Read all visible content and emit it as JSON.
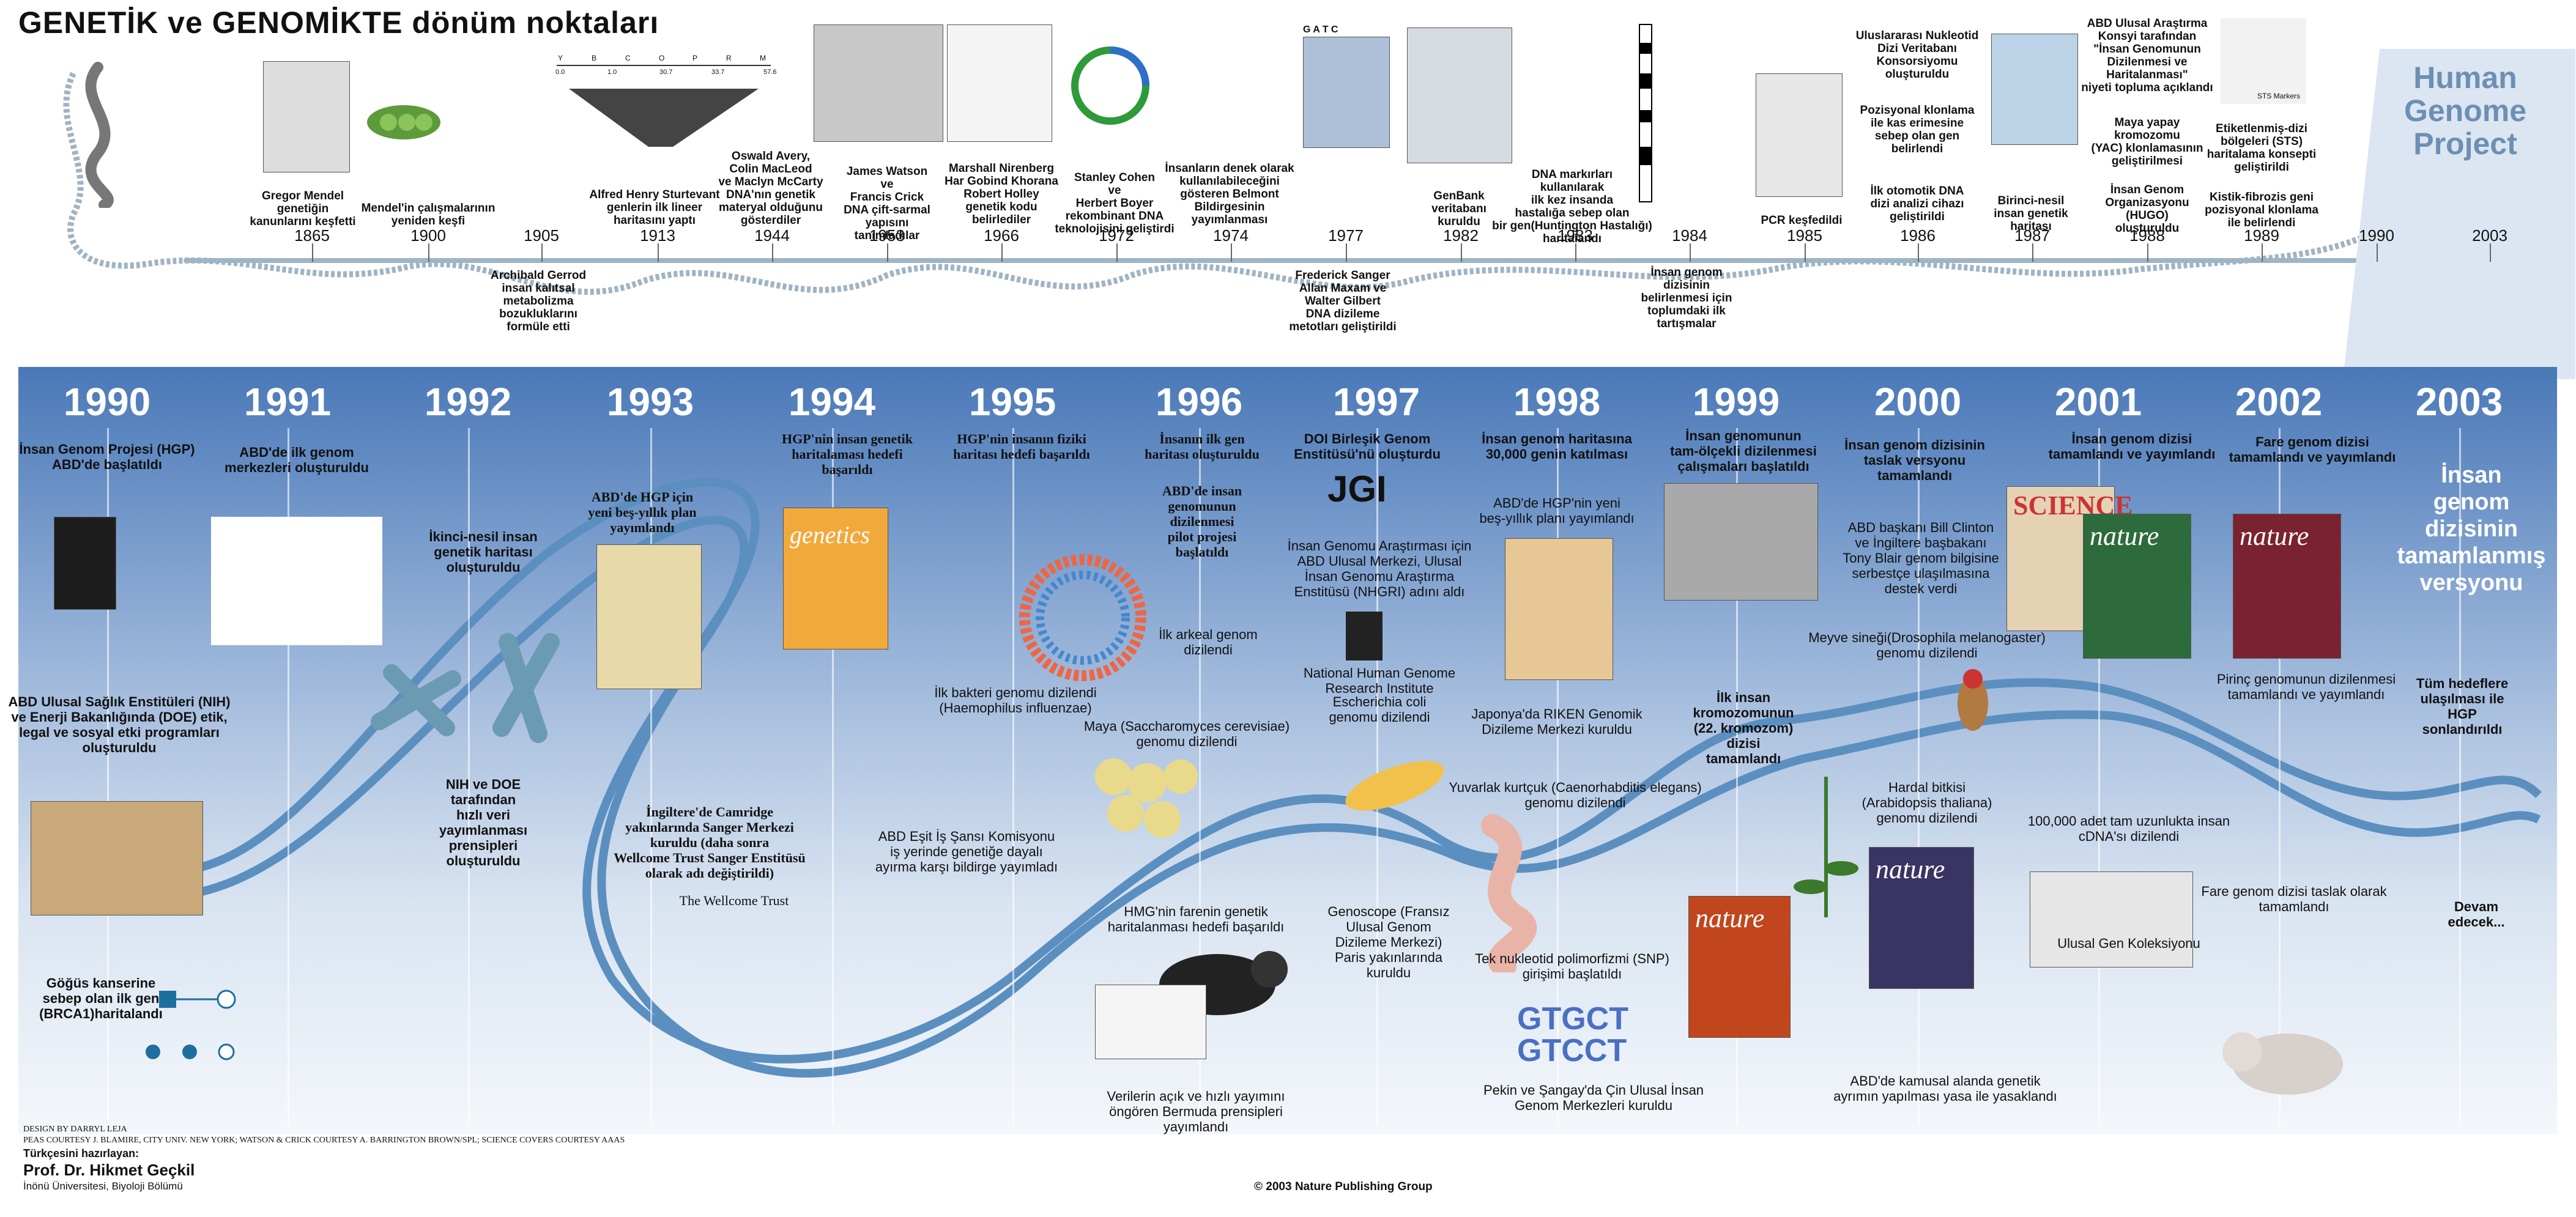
{
  "title": "GENETİK ve GENOMİKTE dönüm noktaları",
  "hgp_label": "Human\nGenome\nProject",
  "top_timeline": {
    "years": [
      "1865",
      "1900",
      "1905",
      "1913",
      "1944",
      "1953",
      "1966",
      "1972",
      "1974",
      "1977",
      "1982",
      "1983",
      "1984",
      "1985",
      "1986",
      "1987",
      "1988",
      "1989",
      "1990",
      "2003"
    ],
    "captions": {
      "c1865": "Gregor Mendel\ngenetiğin\nkanunlarını keşfetti",
      "c1900": "Mendel'in çalışmalarının\nyeniden keşfi",
      "c1905": "Archibald Gerrod\ninsan kalıtsal\nmetabolizma\nbozukluklarını\nformüle etti",
      "c1913": "Alfred Henry Sturtevant\ngenlerin ilk lineer\nharitasını yaptı",
      "c1944": "Oswald Avery,\nColin MacLeod\nve Maclyn McCarty\nDNA'nın genetik\nmateryal olduğunu\ngösterdiler",
      "c1953": "James Watson\nve\nFrancis Crick\nDNA çift-sarmal\nyapısını\ntanımladılar",
      "c1966": "Marshall Nirenberg\nHar Gobind Khorana\nRobert Holley\ngenetik kodu\nbelirlediler",
      "c1972": "Stanley Cohen\nve\nHerbert Boyer\nrekombinant DNA\nteknolojisini geliştirdi",
      "c1974": "İnsanların denek olarak\nkullanılabileceğini\ngösteren Belmont\nBildirgesinin\nyayımlanması",
      "c1977": "Frederick Sanger\nAllan Maxam ve\nWalter Gilbert\nDNA dizileme\nmetotları geliştirildi",
      "c1982": "GenBank\nveritabanı\nkuruldu",
      "c1983": "DNA markırları\nkullanılarak\nilk kez insanda\nhastalığa sebep olan\nbir gen(Huntington Hastalığı)\nharitalandı",
      "c1984": "İnsan genom\ndizisinin\nbelirlenmesi için\ntoplumdaki ilk\ntartışmalar",
      "c1985": "PCR keşfedildi",
      "c1986a": "Uluslararası Nukleotid\nDizi Veritabanı\nKonsorsiyomu\noluşturuldu",
      "c1986b": "Pozisyonal klonlama\nile kas erimesine\nsebep olan gen\nbelirlendi",
      "c1986c": "İlk otomotik DNA\ndizi analizi cihazı\ngeliştirildi",
      "c1987": "Birinci-nesil\ninsan genetik\nharitası",
      "c1988a": "ABD Ulusal Araştırma\nKonsyi tarafından\n\"İnsan Genomunun\nDizilenmesi ve\nHaritalanması\"\nniyeti topluma açıklandı",
      "c1988b": "Maya yapay\nkromozomu\n(YAC) klonlamasının\ngeliştirilmesi",
      "c1988c": "İnsan Genom\nOrganizasyonu\n(HUGO)\noluşturuldu",
      "c1989a": "Etiketlenmiş-dizi\nbölgeleri (STS)\nharitalama konsepti\ngeliştirildi",
      "c1989b": "Kistik-fibrozis geni\npozisyonal klonlama\nile belirlendi"
    },
    "sts_label": "STS Markers",
    "gatc_label": "G A T C",
    "sturtevant_labels": [
      "0.0",
      "1.0",
      "30.7",
      "33.7",
      "57.6"
    ],
    "sturtevant_letters": [
      "Y",
      "B",
      "C",
      "O",
      "P",
      "R",
      "M"
    ]
  },
  "bottom_timeline": {
    "years": [
      "1990",
      "1991",
      "1992",
      "1993",
      "1994",
      "1995",
      "1996",
      "1997",
      "1998",
      "1999",
      "2000",
      "2001",
      "2002",
      "2003"
    ],
    "captions": {
      "y1990a": "İnsan Genom Projesi (HGP)\nABD'de başlatıldı",
      "y1990b": "ABD Ulusal Sağlık Enstitüleri (NIH)\nve Enerji Bakanlığında (DOE) etik,\nlegal ve sosyal etki programları\noluşturuldu",
      "y1990c": "Göğüs kanserine\nsebep olan ilk gen\n(BRCA1)haritalandı",
      "y1991a": "ABD'de ilk genom\nmerkezleri oluşturuldu",
      "y1992a": "İkinci-nesil insan\ngenetik haritası\noluşturuldu",
      "y1992b": "NIH ve DOE\ntarafından\nhızlı veri\nyayımlanması\nprensipleri\noluşturuldu",
      "y1993a": "ABD'de HGP için\nyeni beş-yıllık plan\nyayımlandı",
      "y1993b": "İngiltere'de Camridge\nyakınlarında Sanger Merkezi\nkuruldu (daha sonra\nWellcome Trust Sanger Enstitüsü\nolarak adı değiştirildi)",
      "y1993c": "The Wellcome Trust",
      "y1994a": "HGP'nin insan genetik\nharitalaması hedefi\nbaşarıldı",
      "y1995a": "HGP'nin insanın fiziki\nharitası hedefi başarıldı",
      "y1995b": "İlk bakteri genomu dizilendi\n(Haemophilus influenzae)",
      "y1995c": "ABD Eşit İş Şansı Komisyonu\niş yerinde genetiğe dayalı\nayırma karşı bildirge yayımladı",
      "y1996a": "İnsanın ilk gen\nharitası oluşturuldu",
      "y1996b": "ABD'de insan\ngenomunun\ndizilenmesi\npilot projesi\nbaşlatıldı",
      "y1996c": "İlk arkeal genom\ndizilendi",
      "y1996d": "Maya (Saccharomyces cerevisiae)\ngenomu dizilendi",
      "y1996e": "HMG'nin farenin genetik\nharitalanması hedefi başarıldı",
      "y1996f": "Verilerin açık ve hızlı yayımını\nöngören Bermuda prensipleri\nyayımlandı",
      "y1997a": "DOI Birleşik Genom\nEnstitüsü'nü oluşturdu",
      "y1997b": "İnsan Genomu Araştırması için\nABD Ulusal Merkezi, Ulusal\nİnsan Genomu Araştırma\nEnstitüsü (NHGRI) adını aldı",
      "y1997c": "Escherichia coli\ngenomu dizilendi",
      "y1997d": "Genoscope (Fransız\nUlusal Genom\nDizileme Merkezi)\nParis yakınlarında\nkuruldu",
      "y1997e": "National Human Genome\nResearch Institute",
      "y1998a": "İnsan genom haritasına\n30,000 genin katılması",
      "y1998b": "ABD'de HGP'nin yeni\nbeş-yıllık planı yayımlandı",
      "y1998c": "Japonya'da RIKEN Genomik\nDizileme Merkezi kuruldu",
      "y1998d": "Yuvarlak kurtçuk (Caenorhabditis elegans)\ngenomu dizilendi",
      "y1998e": "Tek nukleotid polimorfizmi (SNP)\ngirişimi başlatıldı",
      "y1998f": "Pekin ve Şangay'da Çin Ulusal İnsan\nGenom Merkezleri kuruldu",
      "y1999a": "İnsan genomunun\ntam-ölçekli dizilenmesi\nçalışmaları başlatıldı",
      "y1999b": "İlk insan\nkromozomunun\n(22. kromozom)\ndizisi\ntamamlandı",
      "y2000a": "İnsan genom dizisinin\ntaslak versyonu\ntamamlandı",
      "y2000b": "ABD başkanı Bill Clinton\nve  İngiltere başbakanı\nTony Blair genom bilgisine\nserbestçe ulaşılmasına\ndestek verdi",
      "y2000c": "Meyve sineği(Drosophila melanogaster)\ngenomu dizilendi",
      "y2000d": "Hardal bitkisi\n(Arabidopsis thaliana)\ngenomu dizilendi",
      "y2000e": "ABD'de kamusal alanda genetik\nayrımın yapılması yasa ile yasaklandı",
      "y2001a": "İnsan genom dizisi\ntamamlandı ve yayımlandı",
      "y2001b": "100,000 adet tam uzunlukta insan\ncDNA'sı dizilendi",
      "y2001c": "Ulusal Gen Koleksiyonu",
      "y2002a": "Fare genom dizisi\ntamamlandı ve yayımlandı",
      "y2002b": "Pirinç genomunun dizilenmesi\ntamamlandı ve yayımlandı",
      "y2002c": "Fare genom dizisi taslak olarak\ntamamlandı",
      "y2003a": "İnsan\ngenom\ndizisinin\ntamamlanmış\nversyonu",
      "y2003b": "Tüm hedeflere\nulaşılması ile HGP\nsonlandırıldı",
      "y2003c": "Devam\nedecek..."
    },
    "journals": {
      "genetics": "genetics",
      "science": "SCIENCE",
      "nature": "nature",
      "jgi": "JGI",
      "gtgct": "GTGCT\nGTCCT"
    }
  },
  "credits": "DESIGN BY DARRYL LEJA\nPEAS COURTESY J. BLAMIRE, CITY UNIV. NEW YORK; WATSON & CRICK COURTESY A. BARRINGTON BROWN/SPL; SCIENCE COVERS COURTESY AAAS",
  "translator_label": "Türkçesini hazırlayan:",
  "translator_name": "Prof. Dr. Hikmet Geçkil",
  "translator_dept": "İnönü Üniversitesi, Biyoloji Bölümü",
  "copyright": "© 2003 Nature Publishing Group",
  "colors": {
    "panel_top": "#4a78b8",
    "hgp_blue": "#6d8fb3",
    "dna_strand": "#5b8fc0"
  }
}
